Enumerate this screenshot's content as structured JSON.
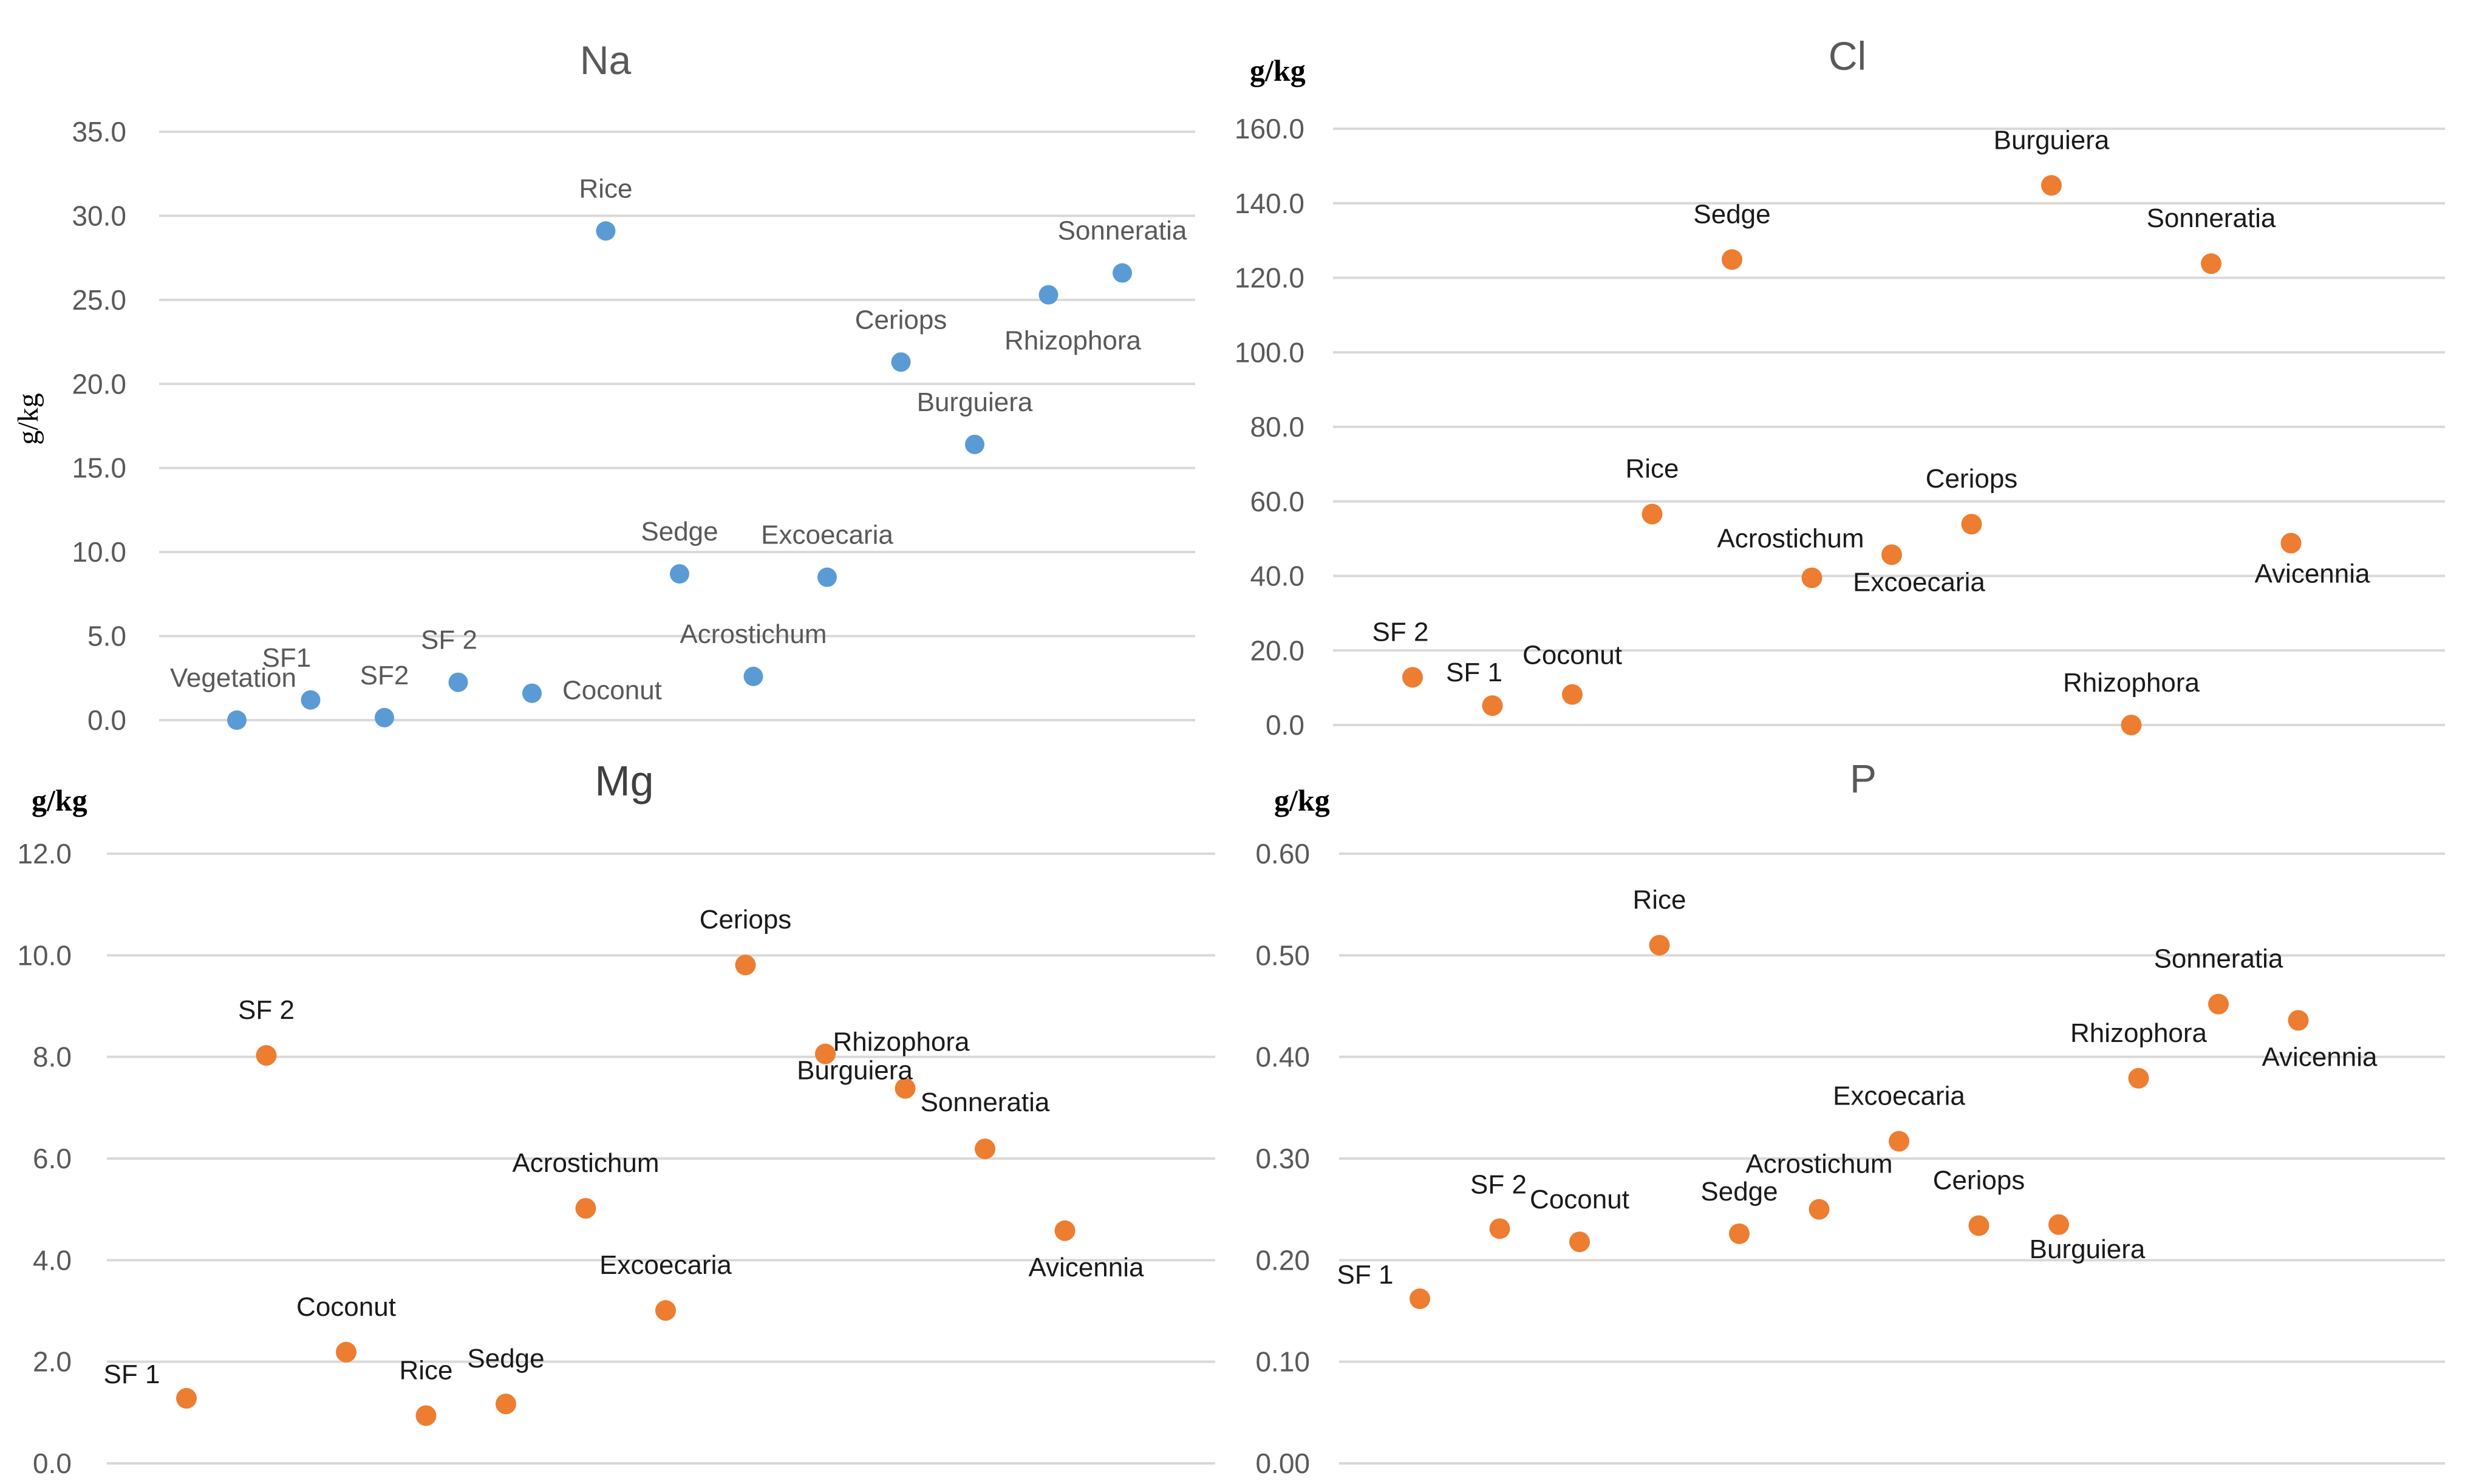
{
  "colors": {
    "na_point": "#5B9BD5",
    "other_point": "#ED7D31",
    "grid": "#D9D9D9"
  },
  "chart_data": [
    {
      "id": "na",
      "type": "scatter",
      "title": "Na",
      "ylabel": "g/kg",
      "xlabel": "",
      "ylim": [
        0,
        35
      ],
      "yticks": [
        "0.0",
        "5.0",
        "10.0",
        "15.0",
        "20.0",
        "25.0",
        "30.0",
        "35.0"
      ],
      "ytick_values": [
        0,
        5,
        10,
        15,
        20,
        25,
        30,
        35
      ],
      "grid": true,
      "legend": "none",
      "point_color": "#5B9BD5",
      "points": [
        {
          "label": "Vegetation",
          "x": 1,
          "y": 0.0
        },
        {
          "label": "SF1",
          "x": 2,
          "y": 1.2
        },
        {
          "label": "SF2",
          "x": 3,
          "y": 0.15
        },
        {
          "label": "SF 2",
          "x": 4,
          "y": 2.25
        },
        {
          "label": "Coconut",
          "x": 5,
          "y": 1.6
        },
        {
          "label": "Rice",
          "x": 6,
          "y": 29.1
        },
        {
          "label": "Sedge",
          "x": 7,
          "y": 8.7
        },
        {
          "label": "Acrostichum",
          "x": 8,
          "y": 2.6
        },
        {
          "label": "Excoecaria",
          "x": 9,
          "y": 8.5
        },
        {
          "label": "Ceriops",
          "x": 10,
          "y": 21.3
        },
        {
          "label": "Burguiera",
          "x": 11,
          "y": 16.4
        },
        {
          "label": "Rhizophora",
          "x": 12,
          "y": 25.3
        },
        {
          "label": "Sonneratia",
          "x": 13,
          "y": 26.6
        }
      ]
    },
    {
      "id": "cl",
      "type": "scatter",
      "title": "Cl",
      "ylabel": "g/kg",
      "xlabel": "",
      "ylim": [
        0,
        160
      ],
      "yticks": [
        "0.0",
        "20.0",
        "40.0",
        "60.0",
        "80.0",
        "100.0",
        "120.0",
        "140.0",
        "160.0"
      ],
      "ytick_values": [
        0,
        20,
        40,
        60,
        80,
        100,
        120,
        140,
        160
      ],
      "grid": true,
      "legend": "none",
      "point_color": "#ED7D31",
      "points": [
        {
          "label": "SF 2",
          "x": 1,
          "y": 12.8
        },
        {
          "label": "SF 1",
          "x": 2,
          "y": 5.2
        },
        {
          "label": "Coconut",
          "x": 3,
          "y": 8.2
        },
        {
          "label": "Rice",
          "x": 4,
          "y": 56.6
        },
        {
          "label": "Sedge",
          "x": 5,
          "y": 124.9
        },
        {
          "label": "Acrostichum",
          "x": 6,
          "y": 39.5
        },
        {
          "label": "Excoecaria",
          "x": 7,
          "y": 45.7
        },
        {
          "label": "Ceriops",
          "x": 8,
          "y": 53.9
        },
        {
          "label": "Burguiera",
          "x": 9,
          "y": 144.8
        },
        {
          "label": "Rhizophora",
          "x": 10,
          "y": 0.0
        },
        {
          "label": "Sonneratia",
          "x": 11,
          "y": 123.8
        },
        {
          "label": "Avicennia",
          "x": 12,
          "y": 48.8
        }
      ]
    },
    {
      "id": "mg",
      "type": "scatter",
      "title": "Mg",
      "ylabel": "g/kg",
      "xlabel": "",
      "ylim": [
        0,
        12
      ],
      "yticks": [
        "0.0",
        "2.0",
        "4.0",
        "6.0",
        "8.0",
        "10.0",
        "12.0"
      ],
      "ytick_values": [
        0,
        2,
        4,
        6,
        8,
        10,
        12
      ],
      "grid": true,
      "legend": "none",
      "point_color": "#ED7D31",
      "points": [
        {
          "label": "SF 1",
          "x": 1,
          "y": 1.28
        },
        {
          "label": "SF 2",
          "x": 2,
          "y": 8.03
        },
        {
          "label": "Coconut",
          "x": 3,
          "y": 2.19
        },
        {
          "label": "Rice",
          "x": 4,
          "y": 0.94
        },
        {
          "label": "Sedge",
          "x": 5,
          "y": 1.17
        },
        {
          "label": "Acrostichum",
          "x": 6,
          "y": 5.02
        },
        {
          "label": "Excoecaria",
          "x": 7,
          "y": 3.01
        },
        {
          "label": "Ceriops",
          "x": 8,
          "y": 9.81
        },
        {
          "label": "Rhizophora",
          "x": 9,
          "y": 8.06
        },
        {
          "label": "Burguiera",
          "x": 10,
          "y": 7.38
        },
        {
          "label": "Sonneratia",
          "x": 11,
          "y": 6.19
        },
        {
          "label": "Avicennia",
          "x": 12,
          "y": 4.58
        }
      ]
    },
    {
      "id": "p",
      "type": "scatter",
      "title": "P",
      "ylabel": "g/kg",
      "xlabel": "",
      "ylim": [
        0,
        0.6
      ],
      "yticks": [
        "0.00",
        "0.10",
        "0.20",
        "0.30",
        "0.40",
        "0.50",
        "0.60"
      ],
      "ytick_values": [
        0,
        0.1,
        0.2,
        0.3,
        0.4,
        0.5,
        0.6
      ],
      "grid": true,
      "legend": "none",
      "point_color": "#ED7D31",
      "points": [
        {
          "label": "SF 1",
          "x": 1,
          "y": 0.162
        },
        {
          "label": "SF 2",
          "x": 2,
          "y": 0.231
        },
        {
          "label": "Coconut",
          "x": 3,
          "y": 0.218
        },
        {
          "label": "Rice",
          "x": 4,
          "y": 0.51
        },
        {
          "label": "Sedge",
          "x": 5,
          "y": 0.226
        },
        {
          "label": "Acrostichum",
          "x": 6,
          "y": 0.25
        },
        {
          "label": "Excoecaria",
          "x": 7,
          "y": 0.317
        },
        {
          "label": "Ceriops",
          "x": 8,
          "y": 0.234
        },
        {
          "label": "Burguiera",
          "x": 9,
          "y": 0.235
        },
        {
          "label": "Rhizophora",
          "x": 10,
          "y": 0.379
        },
        {
          "label": "Sonneratia",
          "x": 11,
          "y": 0.452
        },
        {
          "label": "Avicennia",
          "x": 12,
          "y": 0.436
        }
      ]
    }
  ]
}
